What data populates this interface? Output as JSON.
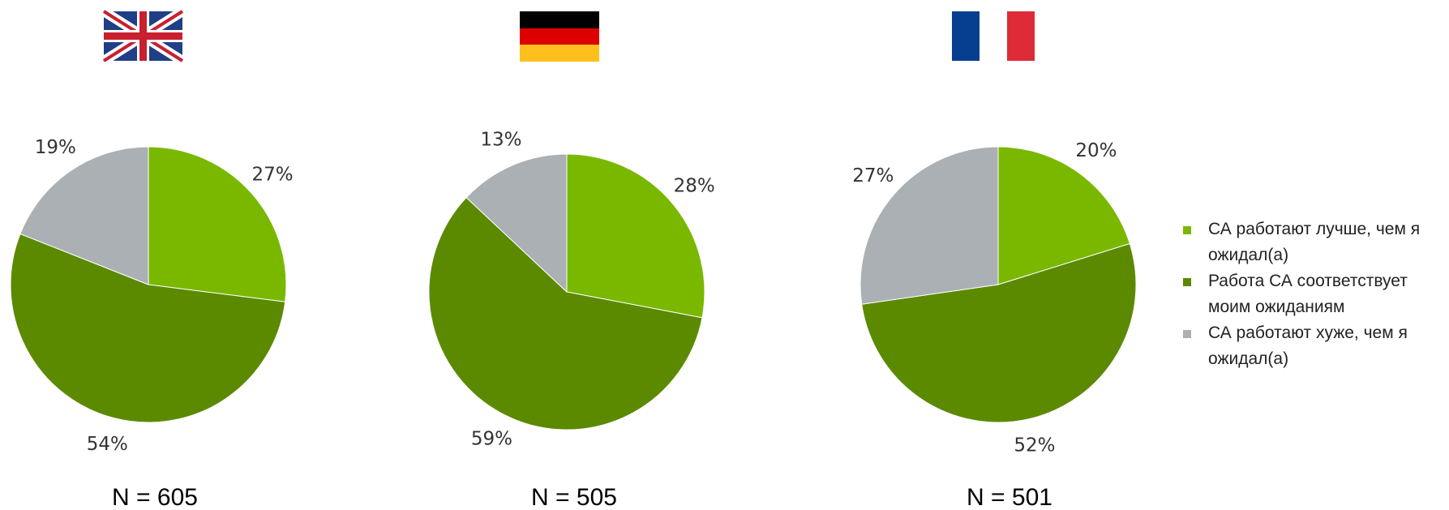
{
  "legend": [
    {
      "name": "СА работают лучше, чем я ожидал(а)",
      "color": "#7ab800"
    },
    {
      "name": "Работа СА соответствует моим ожиданиям",
      "color": "#5b8a00"
    },
    {
      "name": "СА работают хуже, чем я ожидал(а)",
      "color": "#aab0b3"
    }
  ],
  "chart_data": [
    {
      "type": "pie",
      "values": [
        27,
        54,
        19
      ],
      "value_labels": [
        "27%",
        "54%",
        "19%"
      ],
      "subtitle": "N = 605"
    },
    {
      "type": "pie",
      "values": [
        28,
        59,
        13
      ],
      "value_labels": [
        "28%",
        "59%",
        "13%"
      ],
      "subtitle": "N = 505"
    },
    {
      "type": "pie",
      "values": [
        20,
        52,
        27
      ],
      "value_labels": [
        "20%",
        "52%",
        "27%"
      ],
      "subtitle": "N = 501"
    }
  ]
}
